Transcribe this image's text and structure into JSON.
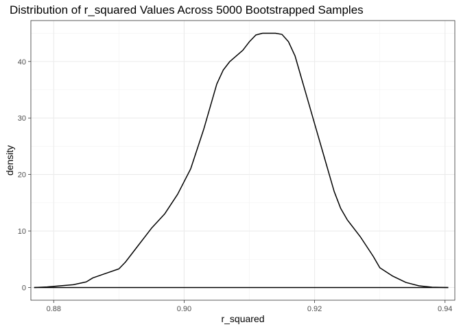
{
  "chart_data": {
    "type": "line",
    "title": "Distribution of r_squared Values Across 5000 Bootstrapped Samples",
    "xlabel": "r_squared",
    "ylabel": "density",
    "xlim": [
      0.8765,
      0.9415
    ],
    "ylim": [
      -2.25,
      47.25
    ],
    "x_ticks": [
      0.88,
      0.9,
      0.92,
      0.94
    ],
    "x_tick_labels": [
      "0.88",
      "0.90",
      "0.92",
      "0.94"
    ],
    "y_ticks": [
      0,
      10,
      20,
      30,
      40
    ],
    "y_tick_labels": [
      "0",
      "10",
      "20",
      "30",
      "40"
    ],
    "grid": true,
    "series": [
      {
        "name": "density",
        "x": [
          0.877,
          0.879,
          0.881,
          0.883,
          0.885,
          0.886,
          0.888,
          0.89,
          0.891,
          0.892,
          0.893,
          0.894,
          0.895,
          0.897,
          0.899,
          0.901,
          0.902,
          0.903,
          0.904,
          0.905,
          0.906,
          0.907,
          0.908,
          0.909,
          0.91,
          0.911,
          0.912,
          0.913,
          0.914,
          0.915,
          0.916,
          0.917,
          0.918,
          0.919,
          0.92,
          0.921,
          0.922,
          0.923,
          0.924,
          0.925,
          0.927,
          0.929,
          0.93,
          0.932,
          0.934,
          0.936,
          0.938,
          0.9405
        ],
        "y": [
          0.0,
          0.1,
          0.3,
          0.5,
          1.0,
          1.7,
          2.5,
          3.3,
          4.5,
          6.0,
          7.5,
          9.0,
          10.5,
          13.0,
          16.5,
          21.0,
          24.5,
          28.0,
          32.0,
          36.0,
          38.5,
          40.0,
          41.0,
          42.0,
          43.5,
          44.7,
          45.0,
          45.0,
          45.0,
          44.8,
          43.5,
          41.0,
          37.0,
          33.0,
          29.0,
          25.0,
          21.0,
          17.0,
          14.0,
          12.0,
          9.0,
          5.5,
          3.5,
          2.0,
          0.9,
          0.3,
          0.05,
          0.0
        ]
      },
      {
        "name": "baseline",
        "x": [
          0.877,
          0.9405
        ],
        "y": [
          0,
          0
        ]
      }
    ]
  }
}
